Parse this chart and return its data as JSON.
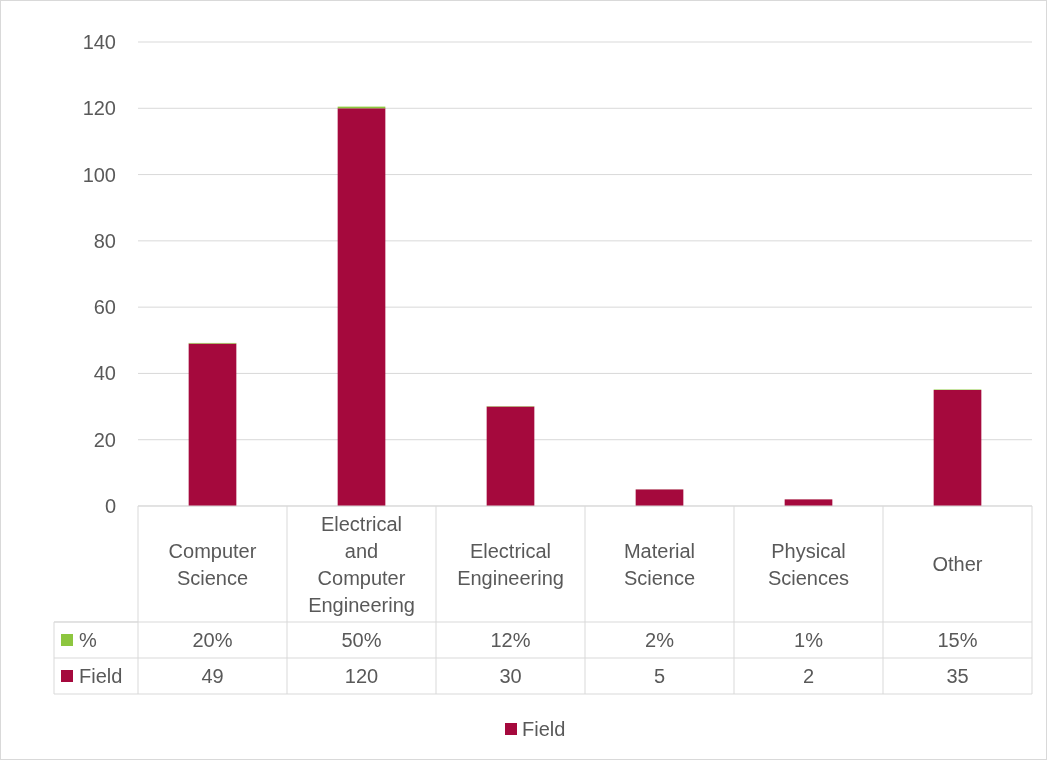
{
  "chart_data": {
    "type": "bar",
    "stacked": true,
    "categories": [
      "Computer Science",
      "Electrical and Computer Engineering",
      "Electrical Engineering",
      "Material Science",
      "Physical Sciences",
      "Other"
    ],
    "series": [
      {
        "name": "Field",
        "color": "#a5093d",
        "values": [
          49,
          120,
          30,
          5,
          2,
          35
        ],
        "value_labels": [
          "49",
          "120",
          "30",
          "5",
          "2",
          "35"
        ]
      },
      {
        "name": "%",
        "color": "#8dc63f",
        "values": [
          0.2,
          0.5,
          0.12,
          0.02,
          0.01,
          0.15
        ],
        "value_labels": [
          "20%",
          "50%",
          "12%",
          "2%",
          "1%",
          "15%"
        ]
      }
    ],
    "ylim": [
      0,
      140
    ],
    "yticks": [
      0,
      20,
      40,
      60,
      80,
      100,
      120,
      140
    ],
    "grid": "y",
    "legend": "bottom"
  }
}
